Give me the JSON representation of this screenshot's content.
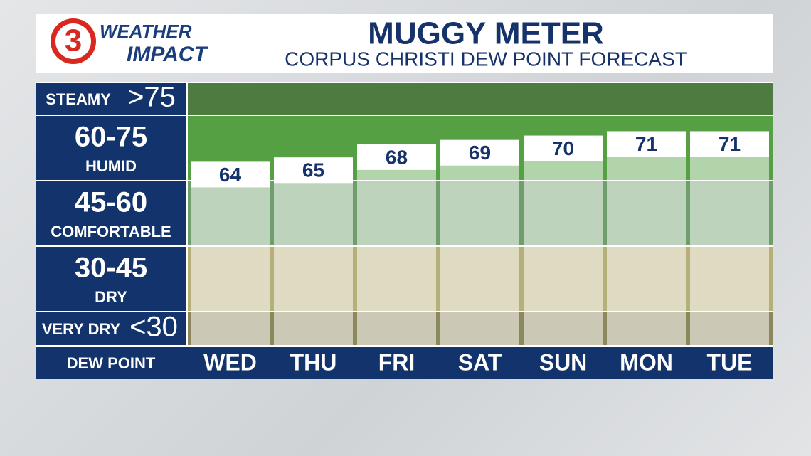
{
  "header": {
    "logo_number": "3",
    "logo_line1": "WEATHER",
    "logo_line2": "IMPACT"
  },
  "chart_data": {
    "type": "bar",
    "title": "MUGGY METER",
    "subtitle": "CORPUS CHRISTI DEW POINT FORECAST",
    "x_label": "DEW POINT",
    "categories": [
      "WED",
      "THU",
      "FRI",
      "SAT",
      "SUN",
      "MON",
      "TUE"
    ],
    "values": [
      64,
      65,
      68,
      69,
      70,
      71,
      71
    ],
    "color": "#ffffff",
    "ylim": [
      22,
      82
    ],
    "bands": [
      {
        "name": "STEAMY",
        "range": ">75",
        "color": "#4e7b3f"
      },
      {
        "range": "60-75",
        "name": "HUMID",
        "color": "#54a043"
      },
      {
        "range": "45-60",
        "name": "COMFORTABLE",
        "color": "#6f9e6c"
      },
      {
        "range": "30-45",
        "name": "DRY",
        "color": "#b5af78"
      },
      {
        "name": "VERY DRY",
        "range": "<30",
        "color": "#8d875d"
      }
    ]
  }
}
